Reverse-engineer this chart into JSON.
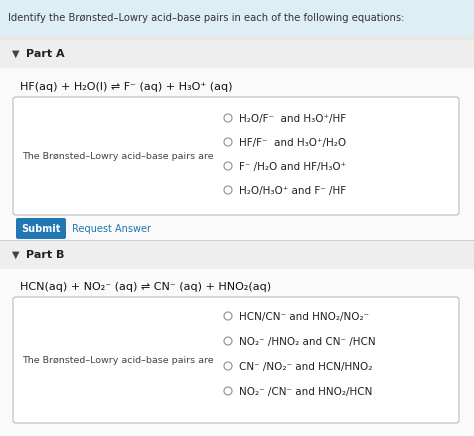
{
  "header_text": "Identify the Brønsted–Lowry acid–base pairs in each of the following equations:",
  "header_bg": "#ddeef5",
  "bg_color": "#f0f0f0",
  "part_a_label": "Part A",
  "part_a_equation": "HF(aq) + H₂O(l) ⇌ F⁻ (aq) + H₃O⁺ (aq)",
  "part_a_box_label": "The Brønsted–Lowry acid–base pairs are",
  "part_a_options": [
    "H₂O/F⁻  and H₃O⁺/HF",
    "HF/F⁻  and H₃O⁺/H₂O",
    "F⁻ /H₂O and HF/H₃O⁺",
    "H₂O/H₃O⁺ and F⁻ /HF"
  ],
  "submit_label": "Submit",
  "request_label": "Request Answer",
  "submit_bg": "#2077b4",
  "submit_fg": "#ffffff",
  "part_b_label": "Part B",
  "part_b_equation": "HCN(aq) + NO₂⁻ (aq) ⇌ CN⁻ (aq) + HNO₂(aq)",
  "part_b_box_label": "The Brønsted–Lowry acid–base pairs are",
  "part_b_options": [
    "HCN/CN⁻ and HNO₂/NO₂⁻",
    "NO₂⁻ /HNO₂ and CN⁻ /HCN",
    "CN⁻ /NO₂⁻ and HCN/HNO₂",
    "NO₂⁻ /CN⁻ and HNO₂/HCN"
  ],
  "box_bg": "#ffffff",
  "box_edge": "#bbbbbb",
  "part_bg": "#f8f8f8",
  "text_color": "#222222",
  "radio_color": "#888888"
}
